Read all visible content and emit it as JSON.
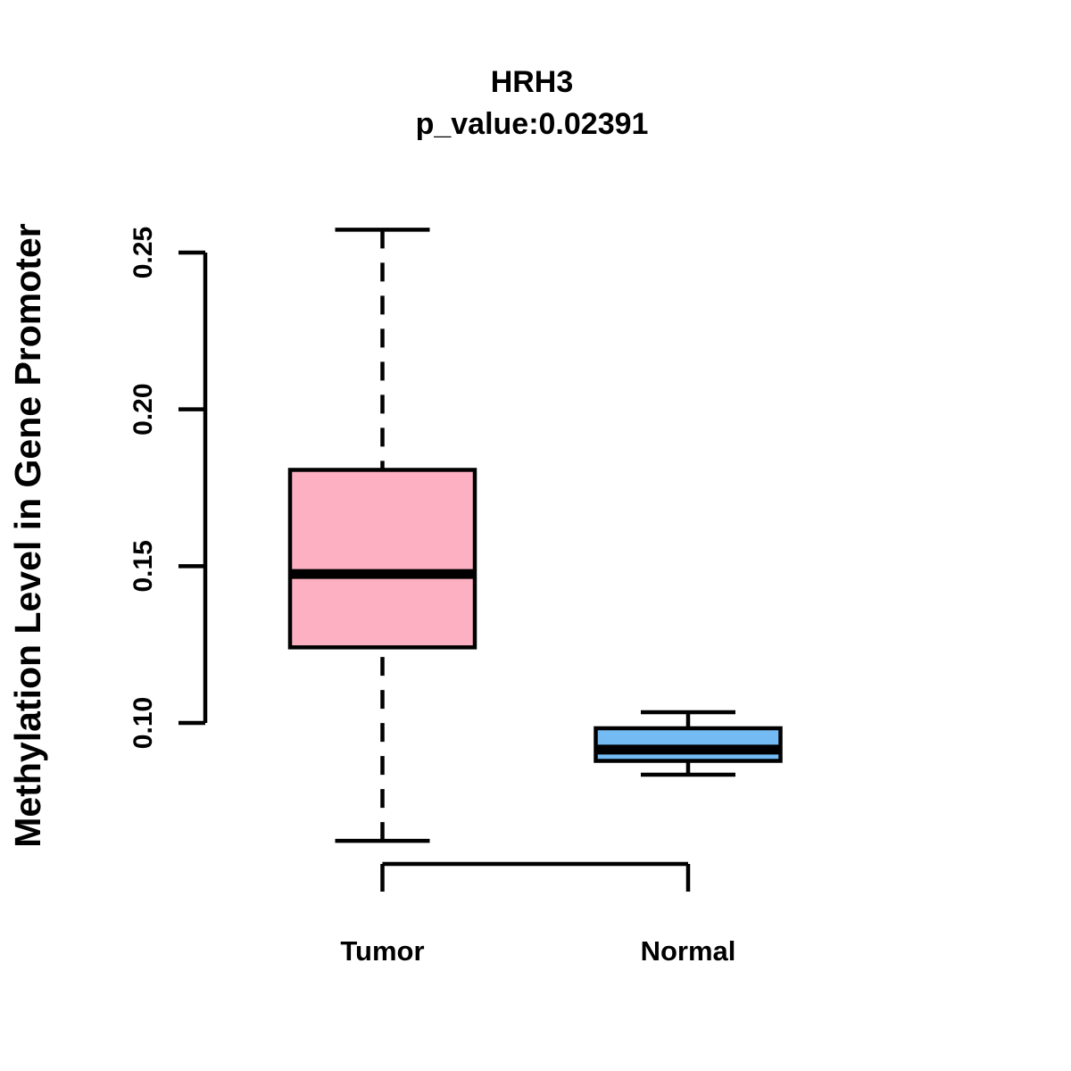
{
  "page": {
    "background": "#ffffff"
  },
  "chart_data": {
    "type": "boxplot",
    "title": "HRH3",
    "subtitle": "p_value:0.02391",
    "p_value": 0.02391,
    "ylabel": "Methylation Level in Gene Promoter",
    "xlabel": "",
    "legend": "none",
    "grid": false,
    "y_axis": {
      "ticks": [
        0.1,
        0.15,
        0.2,
        0.25
      ],
      "tick_labels": [
        "0.10",
        "0.15",
        "0.20",
        "0.25"
      ],
      "data_range_shown": [
        0.06,
        0.26
      ]
    },
    "categories": [
      "Tumor",
      "Normal"
    ],
    "series": [
      {
        "name": "Tumor",
        "color": "#FCB0C2",
        "whisker_low": 0.0624,
        "q1": 0.1241,
        "median": 0.1475,
        "q3": 0.1807,
        "whisker_high": 0.2573
      },
      {
        "name": "Normal",
        "color": "#74BBF3",
        "whisker_low": 0.0835,
        "q1": 0.0879,
        "median": 0.0915,
        "q3": 0.0983,
        "whisker_high": 0.1034
      }
    ],
    "style": {
      "box_border_color": "#000000",
      "median_color": "#000000",
      "whisker_style": "dashed",
      "background": "#ffffff"
    }
  }
}
